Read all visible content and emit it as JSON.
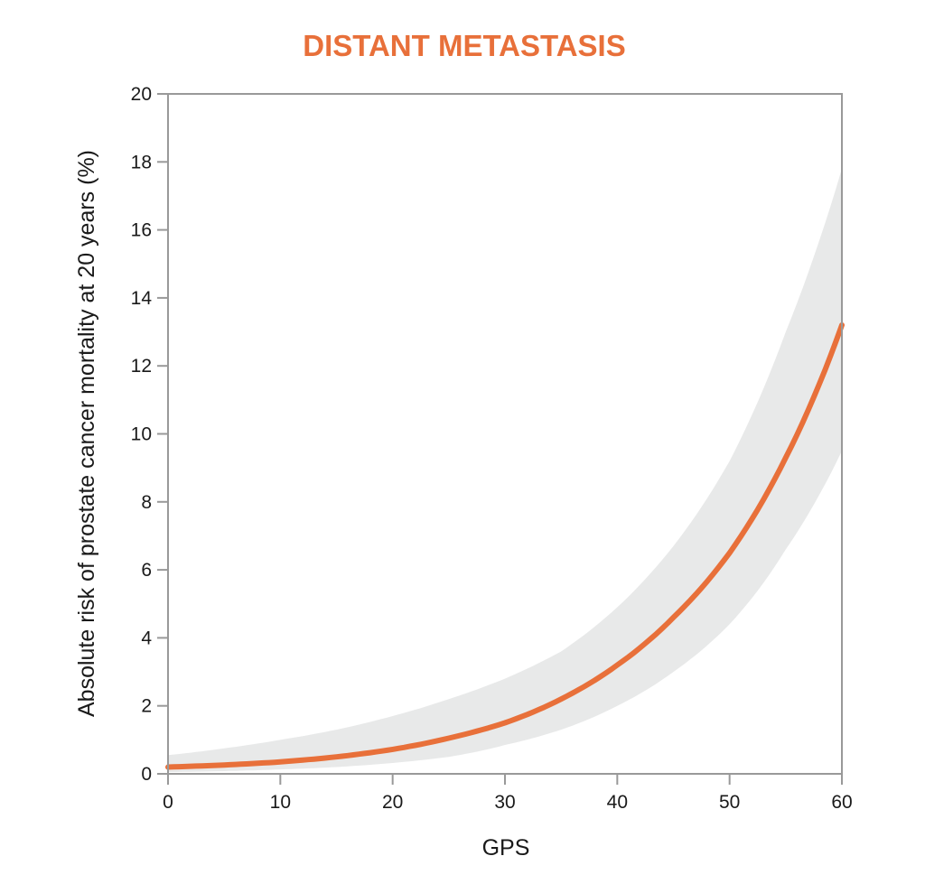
{
  "chart_data": {
    "type": "line",
    "title": "DISTANT METASTASIS",
    "xlabel": "GPS",
    "ylabel": "Absolute risk of prostate cancer mortality at 20 years (%)",
    "xlim": [
      0,
      60
    ],
    "ylim": [
      0,
      20
    ],
    "x_ticks": [
      0,
      10,
      20,
      30,
      40,
      50,
      60
    ],
    "y_ticks": [
      0,
      2,
      4,
      6,
      8,
      10,
      12,
      14,
      16,
      18,
      20
    ],
    "grid": false,
    "legend": "none",
    "x": [
      0,
      5,
      10,
      15,
      20,
      25,
      30,
      35,
      40,
      45,
      50,
      55,
      60
    ],
    "series": [
      {
        "values": [
          0.2,
          0.26,
          0.35,
          0.5,
          0.72,
          1.05,
          1.5,
          2.2,
          3.2,
          4.6,
          6.5,
          9.3,
          13.2
        ],
        "ci_lower": [
          0.05,
          0.08,
          0.13,
          0.2,
          0.32,
          0.5,
          0.85,
          1.3,
          2.0,
          3.0,
          4.4,
          6.6,
          9.5
        ],
        "ci_upper": [
          0.55,
          0.75,
          1.0,
          1.3,
          1.7,
          2.2,
          2.8,
          3.6,
          4.9,
          6.7,
          9.2,
          13.0,
          17.8
        ]
      }
    ],
    "colors": {
      "line": "#e8703a",
      "band": "#e8e9e9",
      "title": "#e8703a",
      "axis": "#999999"
    }
  }
}
